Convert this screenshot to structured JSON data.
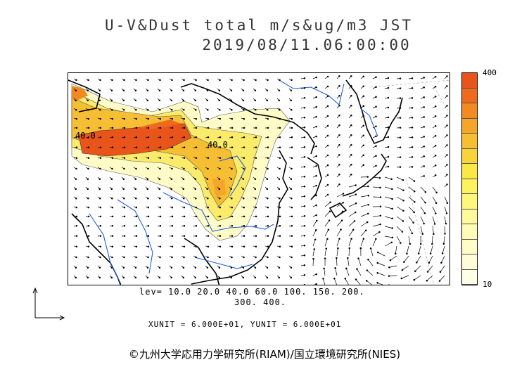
{
  "title_line1": "U-V&Dust total m/s&ug/m3 JST",
  "title_line2": "2019/08/11.06:00:00",
  "colorbar": {
    "max_label": "400",
    "min_label": "10",
    "colors": [
      "#e8541a",
      "#ef6a1c",
      "#f28a22",
      "#f4a52a",
      "#f6be32",
      "#f8d43a",
      "#fae846",
      "#fcf35e",
      "#fdf77e",
      "#fefa9c",
      "#fefbb6",
      "#fffcc8",
      "#fffdd8",
      "#fffee6"
    ]
  },
  "contour_labels": {
    "label_a": "40.0",
    "label_b": "40.0"
  },
  "levels_line1": "lev= 10.0 20.0 40.0 60.0 100. 150. 200.",
  "levels_line2": "300. 400.",
  "units_line": "XUNIT = 6.000E+01, YUNIT = 6.000E+01",
  "copyright": "©九州大学応用力学研究所(RIAM)/国立環境研究所(NIES)"
}
